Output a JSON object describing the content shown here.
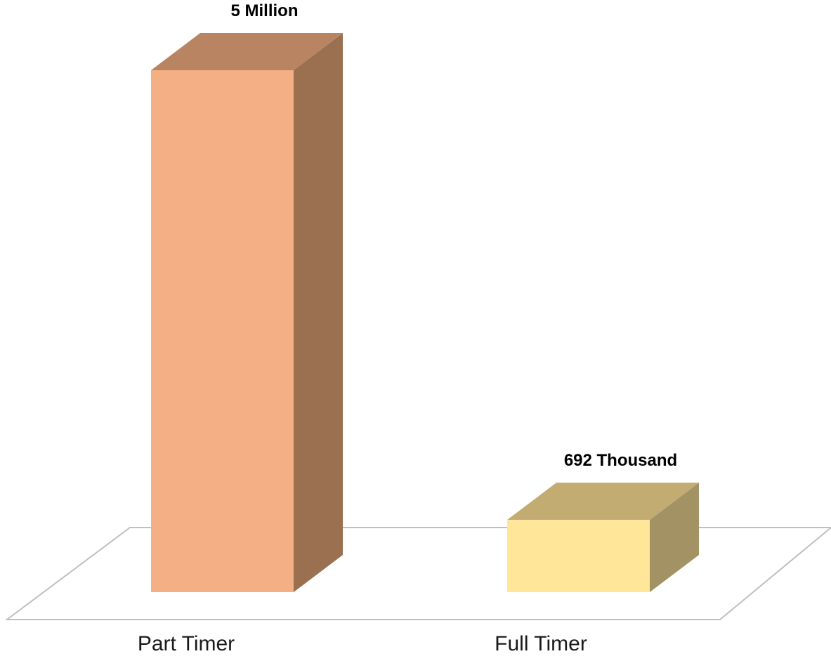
{
  "chart_data": {
    "type": "bar",
    "style": "3d-column",
    "categories": [
      "Part Timer",
      "Full Timer"
    ],
    "values": [
      5000000,
      692000
    ],
    "data_labels": [
      "5 Million",
      "692 Thousand"
    ],
    "title": "",
    "xlabel": "",
    "ylabel": "",
    "ylim": [
      0,
      5000000
    ],
    "grid": false,
    "legend": "none",
    "colors": [
      {
        "front": "#f4b084",
        "top": "#b98462",
        "side": "#9a7051"
      },
      {
        "front": "#ffe699",
        "top": "#c2ac72",
        "side": "#a39263"
      }
    ],
    "floor_color": "#bfbfbf"
  }
}
